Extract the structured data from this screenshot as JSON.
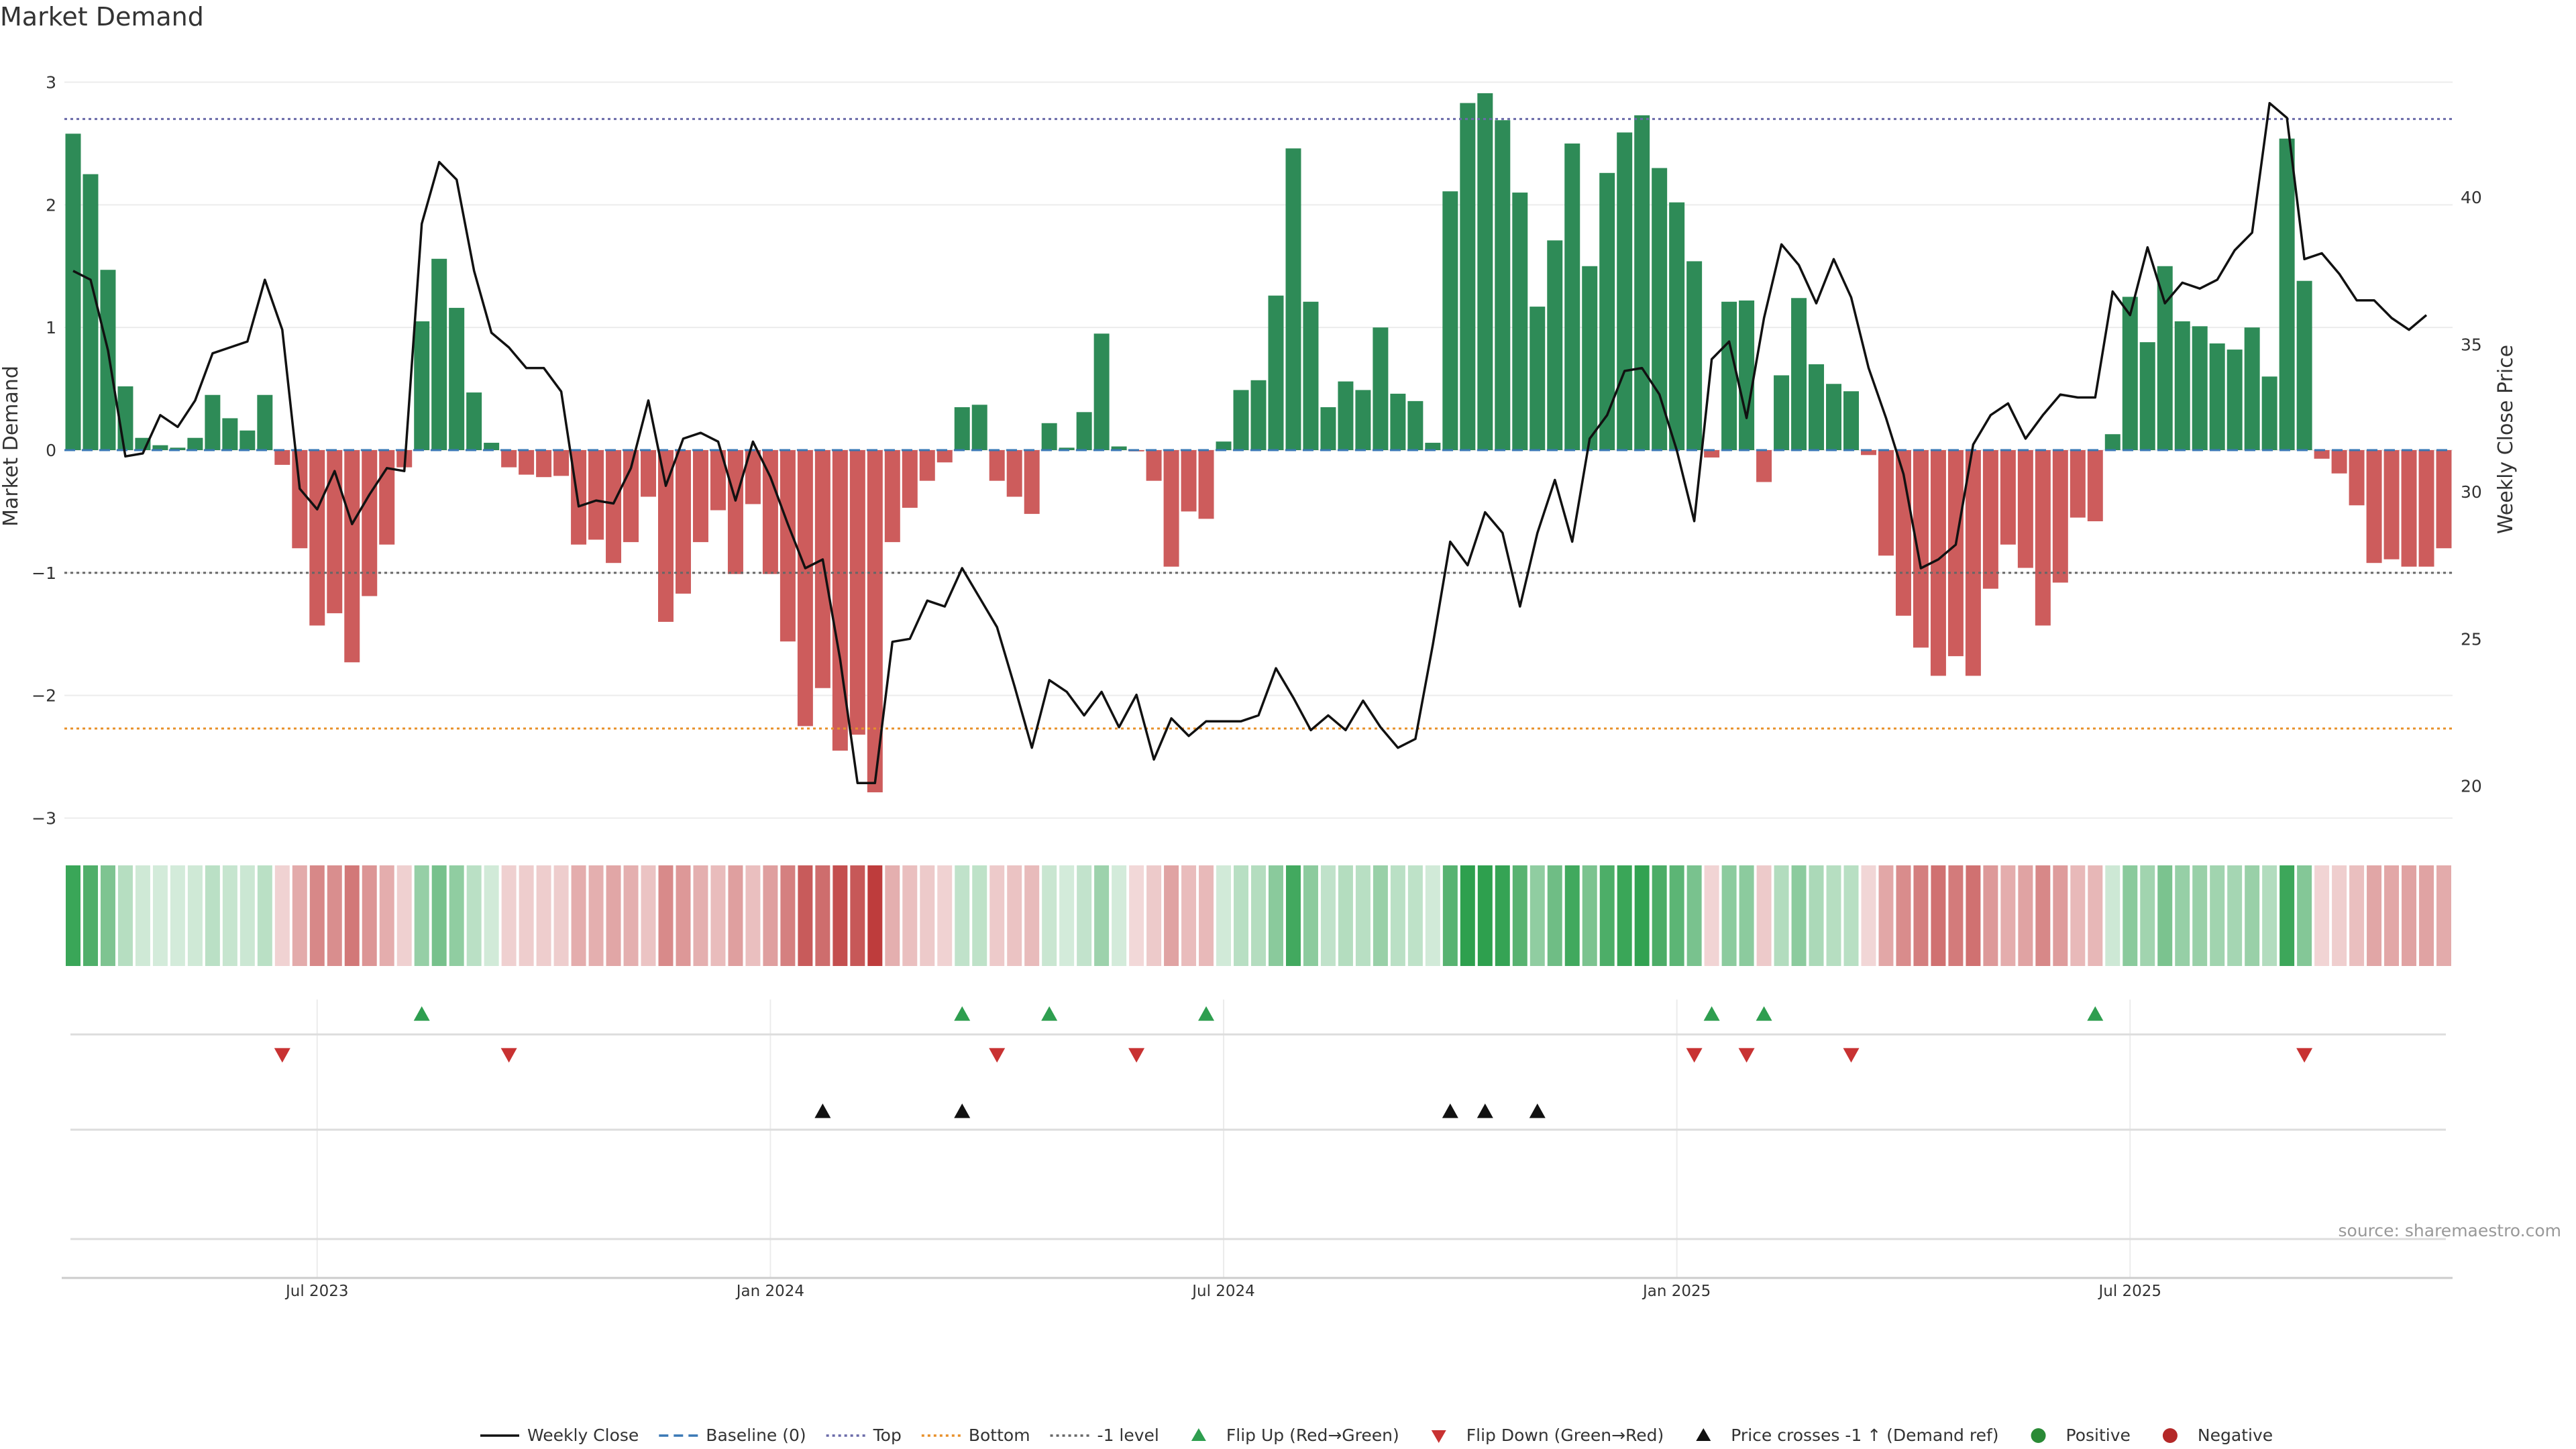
{
  "chart_data": {
    "type": "bar",
    "title": "Market Demand",
    "ylabel": "Market Demand",
    "y2label": "Weekly Close Price",
    "ylim": [
      -3.0,
      3.0
    ],
    "y2lim": [
      18.9,
      43.9
    ],
    "y_ticks": [
      "3",
      "2",
      "1",
      "0",
      "−1",
      "−2",
      "−3"
    ],
    "y_tick_values": [
      3,
      2,
      1,
      0,
      -1,
      -2,
      -3
    ],
    "y2_ticks": [
      "40",
      "35",
      "30",
      "25",
      "20"
    ],
    "y2_tick_values": [
      40,
      35,
      30,
      25,
      20
    ],
    "x_ticks": [
      "Jul 2023",
      "Jan 2024",
      "Jul 2024",
      "Jan 2025",
      "Jul 2025"
    ],
    "x_tick_week_index": [
      14,
      40,
      66,
      92,
      118
    ],
    "levels": {
      "top": 2.7,
      "bottom": -2.27,
      "minus_one": -1,
      "baseline": 0
    },
    "demand": [
      2.58,
      2.25,
      1.47,
      0.52,
      0.1,
      0.04,
      0.02,
      0.1,
      0.45,
      0.26,
      0.16,
      0.45,
      -0.12,
      -0.8,
      -1.43,
      -1.33,
      -1.73,
      -1.19,
      -0.77,
      -0.14,
      1.05,
      1.56,
      1.16,
      0.47,
      0.06,
      -0.14,
      -0.2,
      -0.22,
      -0.21,
      -0.77,
      -0.73,
      -0.92,
      -0.75,
      -0.38,
      -1.4,
      -1.17,
      -0.75,
      -0.49,
      -1.01,
      -0.44,
      -1.01,
      -1.56,
      -2.25,
      -1.94,
      -2.45,
      -2.32,
      -2.79,
      -0.75,
      -0.47,
      -0.25,
      -0.1,
      0.35,
      0.37,
      -0.25,
      -0.38,
      -0.52,
      0.22,
      0.02,
      0.31,
      0.95,
      0.03,
      -0.01,
      -0.25,
      -0.95,
      -0.5,
      -0.56,
      0.07,
      0.49,
      0.57,
      1.26,
      2.46,
      1.21,
      0.35,
      0.56,
      0.49,
      1.0,
      0.46,
      0.4,
      0.06,
      2.11,
      2.83,
      2.91,
      2.69,
      2.1,
      1.17,
      1.71,
      2.5,
      1.5,
      2.26,
      2.59,
      2.73,
      2.3,
      2.02,
      1.54,
      -0.06,
      1.21,
      1.22,
      -0.26,
      0.61,
      1.24,
      0.7,
      0.54,
      0.48,
      -0.04,
      -0.86,
      -1.35,
      -1.61,
      -1.84,
      -1.68,
      -1.84,
      -1.13,
      -0.77,
      -0.96,
      -1.43,
      -1.08,
      -0.55,
      -0.58,
      0.13,
      1.25,
      0.88,
      1.5,
      1.05,
      1.01,
      0.87,
      0.82,
      1.0,
      0.6,
      2.54,
      1.38,
      -0.07,
      -0.19,
      -0.45,
      -0.92,
      -0.89,
      -0.95,
      -0.95,
      -0.8
    ],
    "price": [
      37.5,
      37.2,
      34.8,
      31.2,
      31.3,
      32.6,
      32.2,
      33.1,
      34.7,
      34.9,
      35.1,
      37.2,
      35.5,
      30.1,
      29.4,
      30.7,
      28.9,
      29.9,
      30.8,
      30.7,
      39.1,
      41.2,
      40.6,
      37.5,
      35.4,
      34.9,
      34.2,
      34.2,
      33.4,
      29.5,
      29.7,
      29.6,
      30.8,
      33.1,
      30.2,
      31.8,
      32.0,
      31.7,
      29.7,
      31.7,
      30.5,
      28.9,
      27.4,
      27.7,
      24.3,
      20.1,
      20.1,
      24.9,
      25.0,
      26.3,
      26.1,
      27.4,
      26.4,
      25.4,
      23.4,
      21.3,
      23.6,
      23.2,
      22.4,
      23.2,
      22.0,
      23.1,
      20.9,
      22.3,
      21.7,
      22.2,
      22.2,
      22.2,
      22.4,
      24.0,
      23.0,
      21.9,
      22.4,
      21.9,
      22.9,
      22.0,
      21.3,
      21.6,
      24.8,
      28.3,
      27.5,
      29.3,
      28.6,
      26.1,
      28.6,
      30.4,
      28.3,
      31.8,
      32.6,
      34.1,
      34.2,
      33.3,
      31.4,
      29.0,
      34.5,
      35.1,
      32.5,
      35.9,
      38.4,
      37.7,
      36.4,
      37.9,
      36.6,
      34.2,
      32.5,
      30.6,
      27.4,
      27.7,
      28.2,
      31.6,
      32.6,
      33.0,
      31.8,
      32.6,
      33.3,
      33.2,
      33.2,
      36.8,
      36.0,
      38.3,
      36.4,
      37.1,
      36.9,
      37.2,
      38.2,
      38.8,
      43.2,
      42.7,
      37.9,
      38.1,
      37.4,
      36.5,
      36.5,
      35.9,
      35.5,
      36.0
    ],
    "flip_up_week": [
      20,
      51,
      56,
      65,
      94,
      97,
      116
    ],
    "flip_down_week": [
      12,
      25,
      53,
      61,
      93,
      96,
      102,
      128
    ],
    "price_cross_week": [
      43,
      51,
      79,
      81,
      84
    ],
    "legend": [
      {
        "label": "Weekly Close",
        "kind": "line",
        "color": "#111111"
      },
      {
        "label": "Baseline (0)",
        "kind": "dash",
        "color": "#3a78b5"
      },
      {
        "label": "Top",
        "kind": "dot",
        "color": "#6a6aa8"
      },
      {
        "label": "Bottom",
        "kind": "dot",
        "color": "#e8902a"
      },
      {
        "label": "-1 level",
        "kind": "dot",
        "color": "#666666"
      },
      {
        "label": "Flip Up (Red→Green)",
        "kind": "tri-up",
        "color": "#2e9e4f"
      },
      {
        "label": "Flip Down (Green→Red)",
        "kind": "tri-down",
        "color": "#c83232"
      },
      {
        "label": "Price crosses -1 ↑ (Demand ref)",
        "kind": "tri-up",
        "color": "#111111"
      },
      {
        "label": "Positive",
        "kind": "circle",
        "color": "#2a8a36"
      },
      {
        "label": "Negative",
        "kind": "circle",
        "color": "#b42828"
      }
    ],
    "source": "source: sharemaestro.com",
    "colors": {
      "positive": "#2e8b57",
      "negative": "#cd5c5c",
      "price": "#111111",
      "top": "#6a6aa8",
      "bottom": "#e8902a",
      "minus_one": "#666666",
      "baseline": "#3a78b5",
      "grid": "#ececec"
    }
  }
}
